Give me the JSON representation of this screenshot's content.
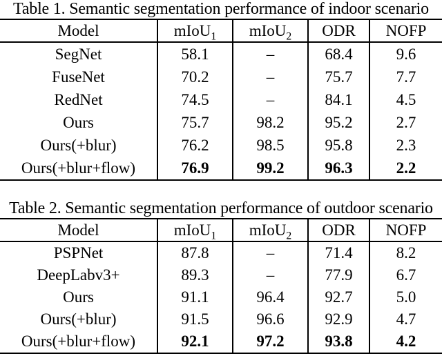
{
  "page": {
    "background_color": "#ffffff",
    "text_color": "#000000",
    "rule_color": "#000000"
  },
  "tables": [
    {
      "caption": "Table 1. Semantic segmentation performance of indoor scenario",
      "columns": [
        {
          "label": "Model",
          "sub": ""
        },
        {
          "label": "mIoU",
          "sub": "1"
        },
        {
          "label": "mIoU",
          "sub": "2"
        },
        {
          "label": "ODR",
          "sub": ""
        },
        {
          "label": "NOFP",
          "sub": ""
        }
      ],
      "rows": [
        {
          "model": "SegNet",
          "values": [
            "58.1",
            "–",
            "68.4",
            "9.6"
          ],
          "bold": false
        },
        {
          "model": "FuseNet",
          "values": [
            "70.2",
            "–",
            "75.7",
            "7.7"
          ],
          "bold": false
        },
        {
          "model": "RedNet",
          "values": [
            "74.5",
            "–",
            "84.1",
            "4.5"
          ],
          "bold": false
        },
        {
          "model": "Ours",
          "values": [
            "75.7",
            "98.2",
            "95.2",
            "2.7"
          ],
          "bold": false
        },
        {
          "model": "Ours(+blur)",
          "values": [
            "76.2",
            "98.5",
            "95.8",
            "2.3"
          ],
          "bold": false
        },
        {
          "model": "Ours(+blur+flow)",
          "values": [
            "76.9",
            "99.2",
            "96.3",
            "2.2"
          ],
          "bold": true
        }
      ]
    },
    {
      "caption": "Table 2. Semantic segmentation performance of outdoor scenario",
      "columns": [
        {
          "label": "Model",
          "sub": ""
        },
        {
          "label": "mIoU",
          "sub": "1"
        },
        {
          "label": "mIoU",
          "sub": "2"
        },
        {
          "label": "ODR",
          "sub": ""
        },
        {
          "label": "NOFP",
          "sub": ""
        }
      ],
      "rows": [
        {
          "model": "PSPNet",
          "values": [
            "87.8",
            "–",
            "71.4",
            "8.2"
          ],
          "bold": false
        },
        {
          "model": "DeepLabv3+",
          "values": [
            "89.3",
            "–",
            "77.9",
            "6.7"
          ],
          "bold": false
        },
        {
          "model": "Ours",
          "values": [
            "91.1",
            "96.4",
            "92.7",
            "5.0"
          ],
          "bold": false
        },
        {
          "model": "Ours(+blur)",
          "values": [
            "91.5",
            "96.6",
            "92.9",
            "4.7"
          ],
          "bold": false
        },
        {
          "model": "Ours(+blur+flow)",
          "values": [
            "92.1",
            "97.2",
            "93.8",
            "4.2"
          ],
          "bold": true
        }
      ]
    }
  ]
}
